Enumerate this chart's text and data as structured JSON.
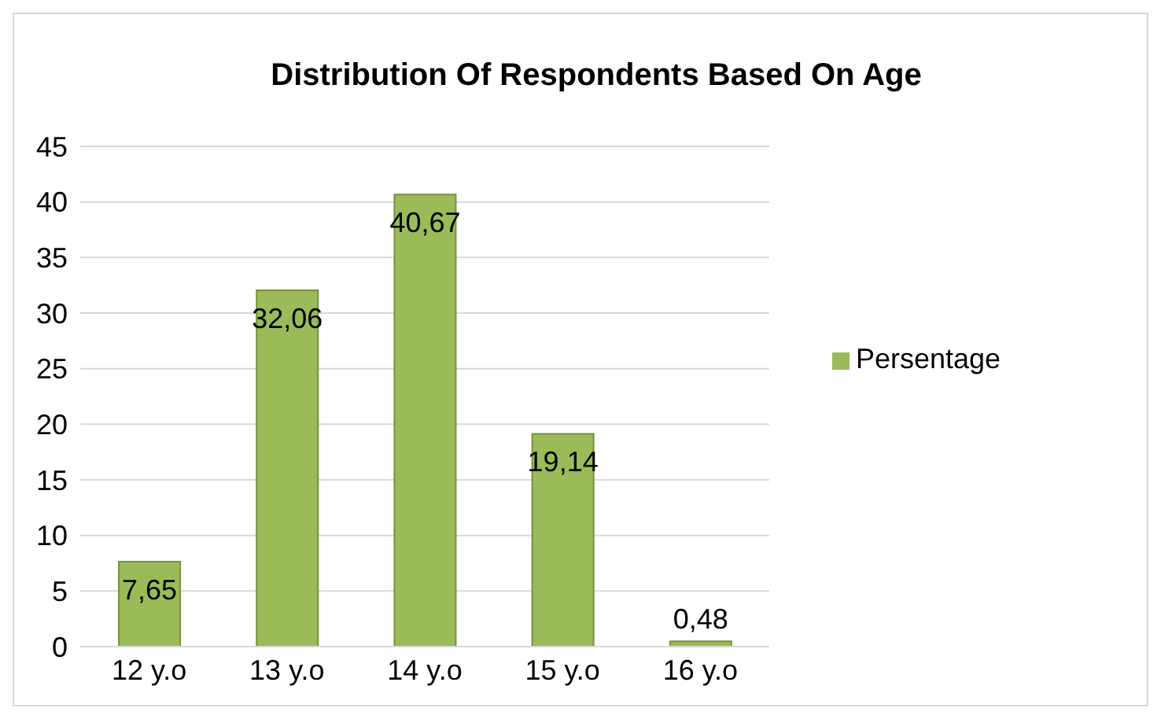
{
  "chart_data": {
    "type": "bar",
    "title": "Distribution Of Respondents Based On Age",
    "categories": [
      "12 y.o",
      "13 y.o",
      "14 y.o",
      "15 y.o",
      "16 y.o"
    ],
    "series": [
      {
        "name": "Persentage",
        "color": "#9bbb59",
        "values": [
          7.65,
          32.06,
          40.67,
          19.14,
          0.48
        ],
        "value_labels": [
          "7,65",
          "32,06",
          "40,67",
          "19,14",
          "0,48"
        ]
      }
    ],
    "ylim": [
      0,
      45
    ],
    "yticks": [
      0,
      5,
      10,
      15,
      20,
      25,
      30,
      35,
      40,
      45
    ],
    "grid": "y",
    "legend": "right"
  }
}
